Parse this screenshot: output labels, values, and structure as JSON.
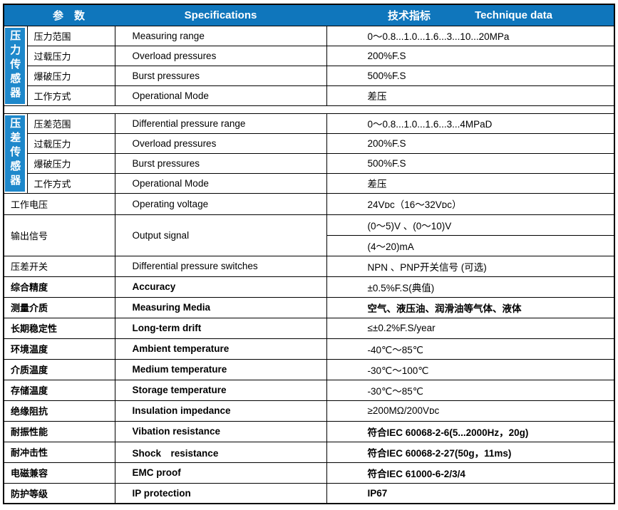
{
  "colors": {
    "header_bg": "#0f76bc",
    "side_strip_bg": "#1e88cb",
    "border": "#000000",
    "header_text": "#ffffff",
    "body_text": "#000000"
  },
  "header": {
    "col_param": "参　数",
    "col_spec": "Specifications",
    "col_tech_cn": "技术指标",
    "col_tech_en": "Technique data"
  },
  "side_labels": [
    {
      "text": "压力传感器"
    },
    {
      "text": "压差传感器"
    }
  ],
  "rows": [
    {
      "cn": "压力范围",
      "en": "Measuring range",
      "value": "0～0.8...1.0...1.6...3...10...20MPa"
    },
    {
      "cn": "过载压力",
      "en": "Overload pressures",
      "value": "200%F.S"
    },
    {
      "cn": "爆破压力",
      "en": "Burst pressures",
      "value": "500%F.S"
    },
    {
      "cn": "工作方式",
      "en": "Operational Mode",
      "value": "差压"
    },
    {
      "cn": "压差范围",
      "en": "Differential pressure range",
      "value": "0～0.8...1.0...1.6...3...4MPaD"
    },
    {
      "cn": "过载压力",
      "en": "Overload pressures",
      "value": "200%F.S"
    },
    {
      "cn": "爆破压力",
      "en": "Burst pressures",
      "value": "500%F.S"
    },
    {
      "cn": "工作方式",
      "en": "Operational Mode",
      "value": "差压"
    },
    {
      "cn": "工作电压",
      "en": "Operating voltage",
      "value": "24Vᴅᴄ（16～32Vᴅᴄ）"
    },
    {
      "cn": "输出信号",
      "en": "Output signal",
      "value": "(0～5)V 、(0～10)V",
      "value2": "(4～20)mA"
    },
    {
      "cn": "压差开关",
      "en": "Differential pressure switches",
      "value": "NPN 、PNP开关信号 (可选)"
    },
    {
      "cn": "综合精度",
      "en": "Accuracy",
      "value": "±0.5%F.S(典值)"
    },
    {
      "cn": "测量介质",
      "en": "Measuring Media",
      "value": "空气、液压油、润滑油等气体、液体"
    },
    {
      "cn": "长期稳定性",
      "en": "Long-term drift",
      "value": "≤±0.2%F.S/year"
    },
    {
      "cn": "环境温度",
      "en": "Ambient temperature",
      "value": "-40℃～85℃"
    },
    {
      "cn": "介质温度",
      "en": "Medium temperature",
      "value": "-30℃～100℃"
    },
    {
      "cn": "存储温度",
      "en": "Storage temperature",
      "value": "-30℃～85℃"
    },
    {
      "cn": "绝缘阻抗",
      "en": "Insulation impedance",
      "value": "≥200MΩ/200Vᴅᴄ"
    },
    {
      "cn": "耐振性能",
      "en": "Vibation resistance",
      "value": "符合IEC 60068-2-6(5...2000Hz，20g)"
    },
    {
      "cn": "耐冲击性",
      "en": "Shock　resistance",
      "value": "符合IEC 60068-2-27(50g，11ms)"
    },
    {
      "cn": "电磁兼容",
      "en": "EMC proof",
      "value": "符合IEC 61000-6-2/3/4"
    },
    {
      "cn": "防护等级",
      "en": "IP protection",
      "value": "IP67"
    }
  ]
}
